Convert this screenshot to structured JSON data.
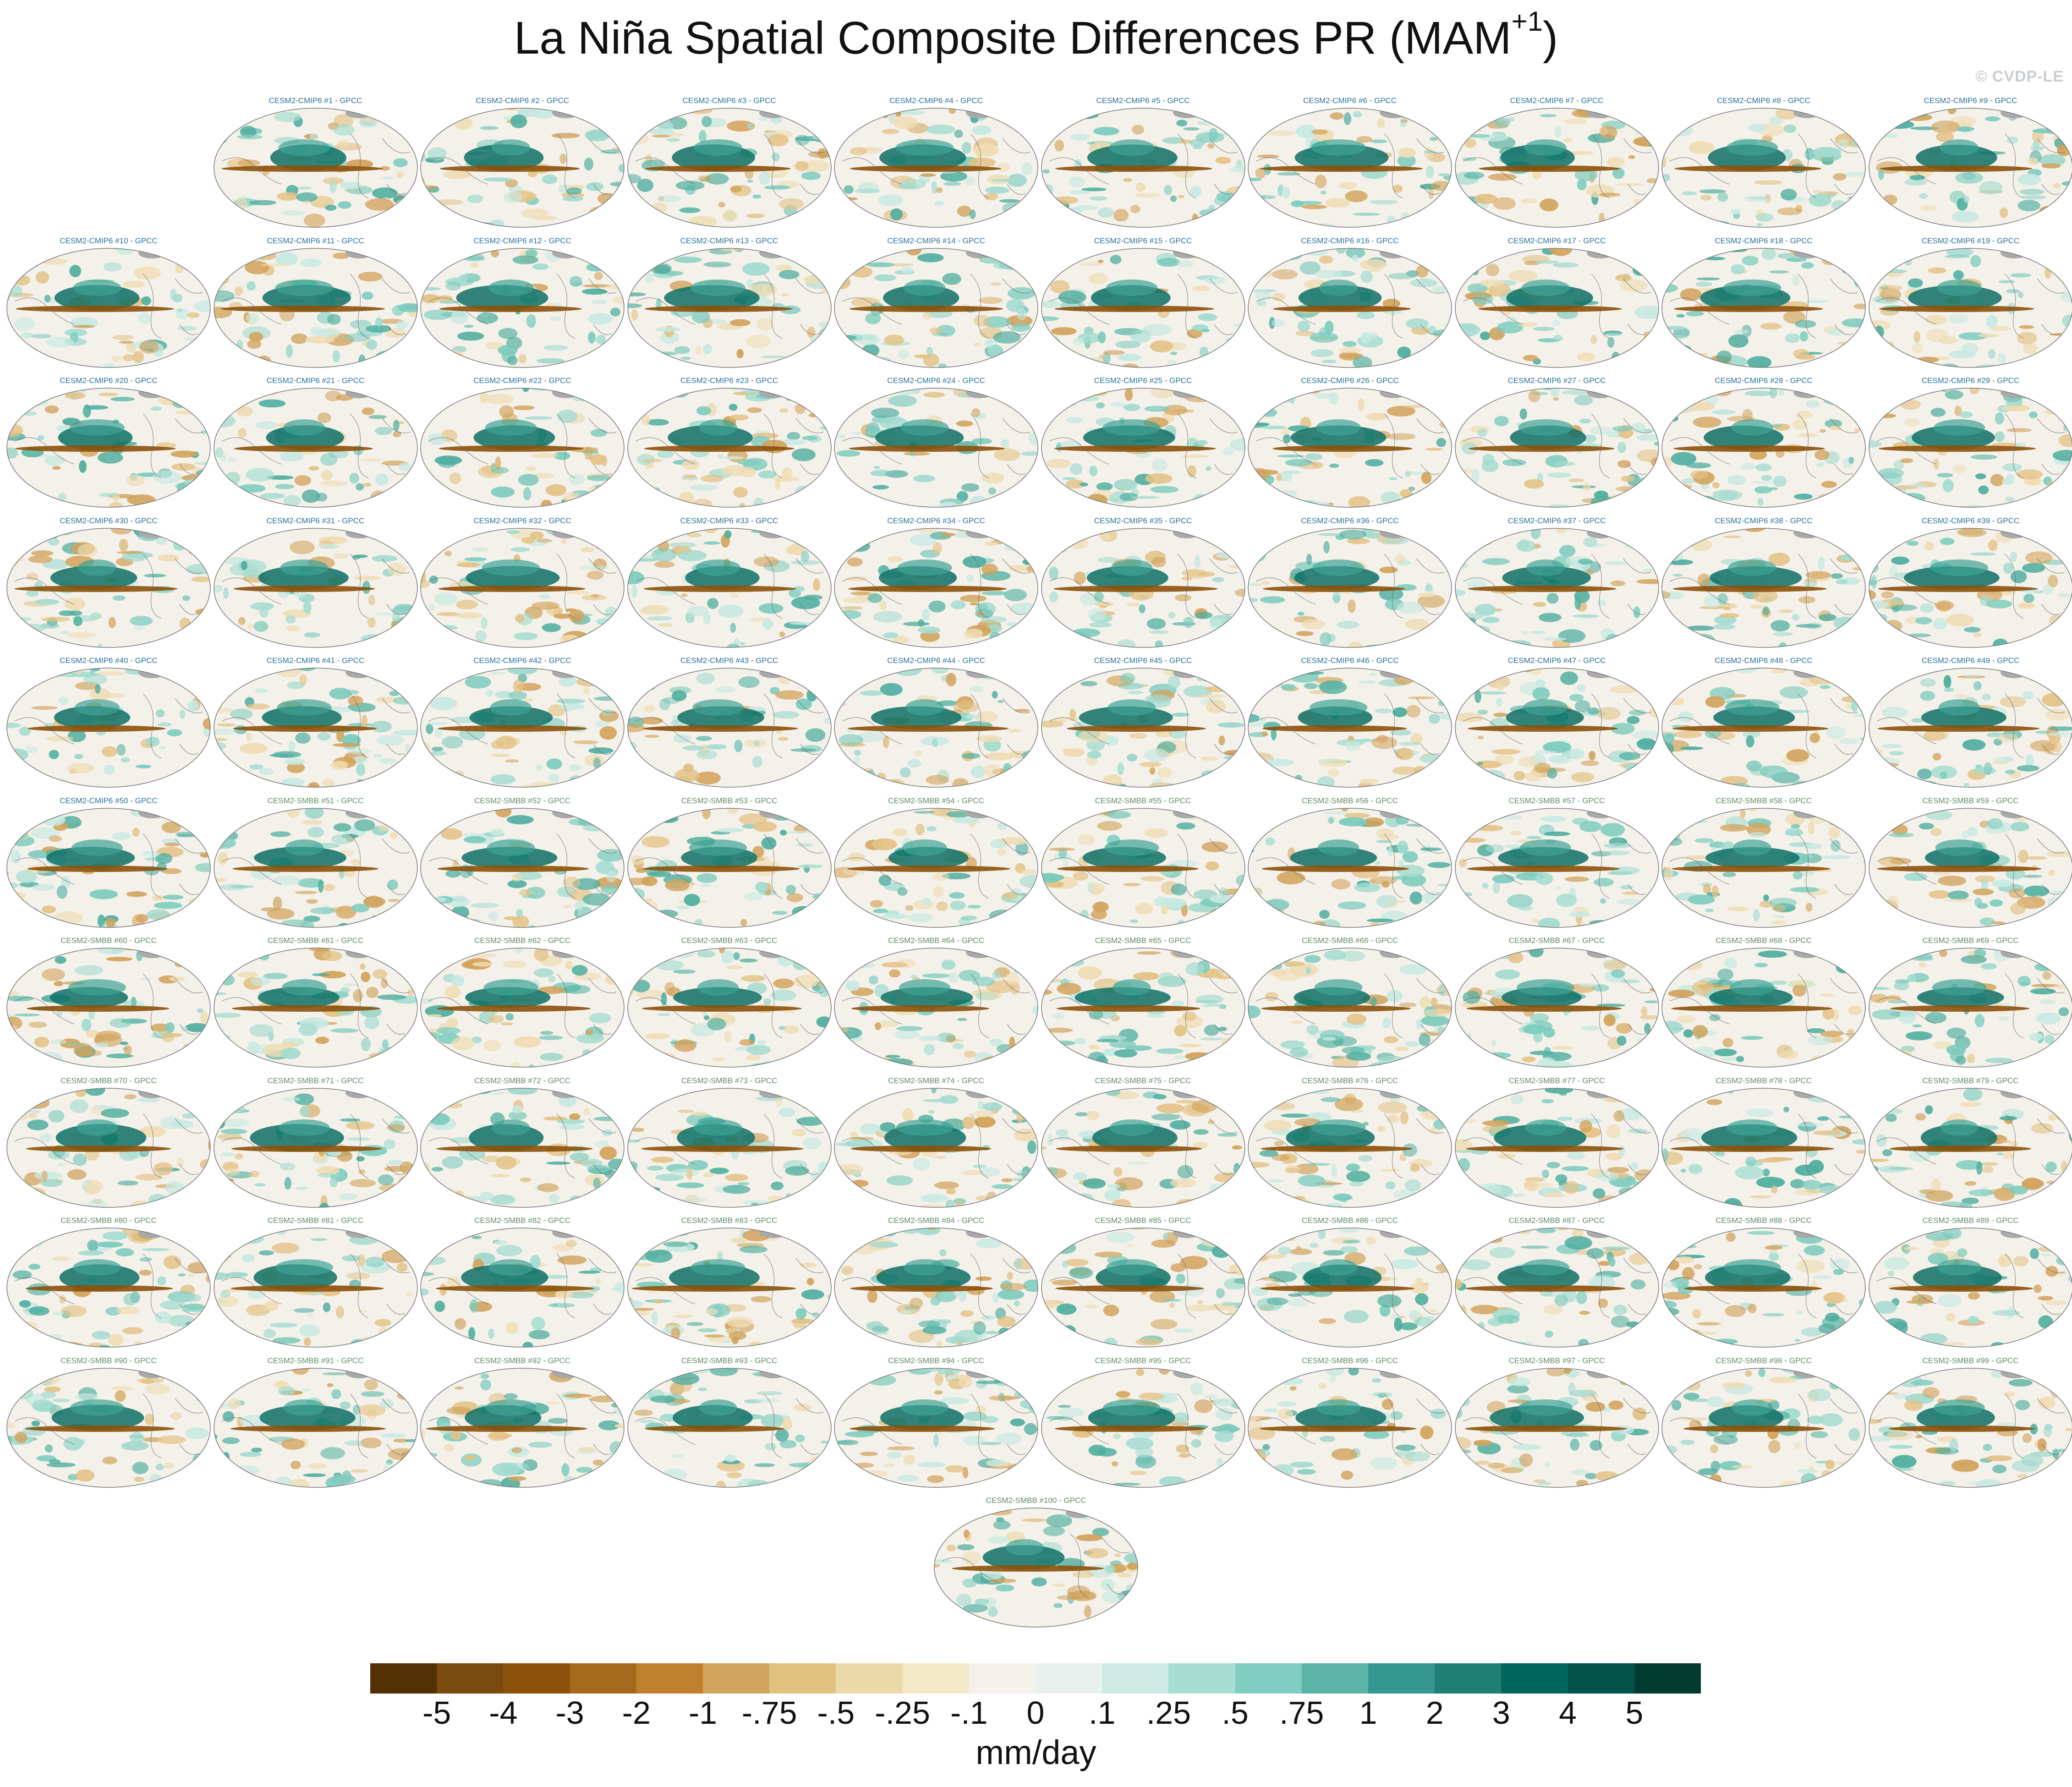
{
  "title": {
    "main": "La Niña Spatial Composite Differences PR (MAM",
    "superscript": "+1",
    "close": ")"
  },
  "watermark": "© CVDP-LE",
  "units": "mm/day",
  "panel_groups": [
    {
      "model": "CESM2-CMIP6",
      "first": 1,
      "last": 50,
      "observations": "GPCC",
      "label_color": "#2a6f9b"
    },
    {
      "model": "CESM2-SMBB",
      "first": 51,
      "last": 100,
      "observations": "GPCC",
      "label_color": "#5e8b63"
    }
  ],
  "panel_label_format": "{model} #{n} - GPCC",
  "colorbar": {
    "labels": [
      "-5",
      "-4",
      "-3",
      "-2",
      "-1",
      "-.75",
      "-.5",
      "-.25",
      "-.1",
      "0",
      ".1",
      ".25",
      ".5",
      ".75",
      "1",
      "2",
      "3",
      "4",
      "5"
    ],
    "colors": [
      "#543005",
      "#7a4a0f",
      "#8c510a",
      "#a66a1e",
      "#bf812d",
      "#d2a55e",
      "#dfc27d",
      "#ecd9a8",
      "#f3e9c8",
      "#f5f2ec",
      "#e9f1ef",
      "#cdeae4",
      "#a8ddd3",
      "#80cdc1",
      "#5ab4a8",
      "#35978f",
      "#1f7f77",
      "#01665e",
      "#01534b",
      "#003c30"
    ]
  }
}
